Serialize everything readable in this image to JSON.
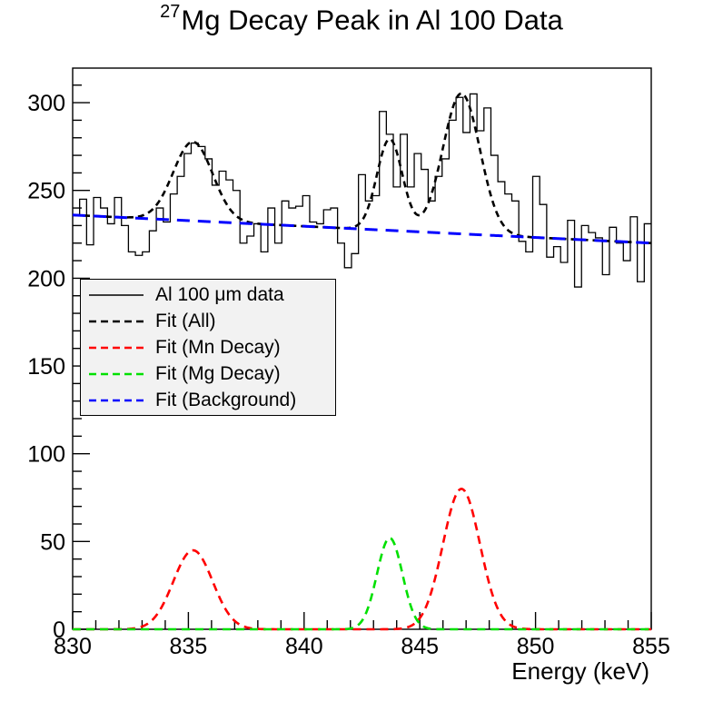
{
  "title": {
    "isotope_superscript": "27",
    "text": "Mg Decay Peak in Al 100 Data"
  },
  "axes": {
    "x_label": "Energy (keV)",
    "x_ticks_major": [
      830,
      835,
      840,
      845,
      850,
      855
    ],
    "x_minor_step": 1,
    "y_ticks_major": [
      0,
      50,
      100,
      150,
      200,
      250,
      300
    ],
    "y_minor_step": 10
  },
  "legend": {
    "entries": [
      {
        "label": "Al 100 μm data",
        "color": "#000000",
        "style": "solid"
      },
      {
        "label": "Fit (All)",
        "color": "#000000",
        "style": "dashed"
      },
      {
        "label": "Fit (Mn Decay)",
        "color": "#ff0000",
        "style": "dashed"
      },
      {
        "label": "Fit (Mg Decay)",
        "color": "#00e000",
        "style": "dashed"
      },
      {
        "label": "Fit (Background)",
        "color": "#0000ff",
        "style": "dashed"
      }
    ]
  },
  "colors": {
    "histogram": "#000000",
    "fit_all": "#000000",
    "fit_mn": "#ff0000",
    "fit_mg": "#00e000",
    "fit_background": "#0000ff",
    "legend_background": "#f2f2f2",
    "frame": "#000000"
  },
  "chart_data": {
    "type": "bar",
    "subtype": "histogram-with-fit-curves",
    "title": "27Mg Decay Peak in Al 100 Data",
    "xlabel": "Energy (keV)",
    "ylabel": "",
    "xlim": [
      830,
      855
    ],
    "ylim": [
      0,
      319.7
    ],
    "grid": false,
    "legend_position": "middle-left",
    "histogram": {
      "name": "Al 100 μm data",
      "bin_start": 830.0,
      "bin_width": 0.3012,
      "counts": [
        236,
        245,
        219,
        246,
        240,
        231,
        246,
        230,
        215,
        213,
        215,
        227,
        240,
        232,
        248,
        258,
        271,
        277,
        275,
        268,
        253,
        261,
        256,
        250,
        220,
        224,
        231,
        215,
        240,
        220,
        244,
        240,
        241,
        247,
        232,
        231,
        239,
        240,
        220,
        206,
        214,
        259,
        244,
        247,
        295,
        282,
        252,
        282,
        252,
        271,
        262,
        244,
        258,
        268,
        290,
        303,
        283,
        305,
        284,
        297,
        270,
        255,
        248,
        244,
        221,
        215,
        258,
        242,
        212,
        218,
        209,
        233,
        195,
        230,
        226,
        223,
        202,
        229,
        220,
        210,
        235,
        198,
        231
      ]
    },
    "fits": {
      "background": {
        "type": "linear",
        "value_at_830": 236,
        "value_at_855": 220
      },
      "mn_decay": {
        "type": "gaussian-sum",
        "peaks": [
          {
            "mean": 835.2,
            "sigma": 0.85,
            "amplitude": 45
          },
          {
            "mean": 846.8,
            "sigma": 0.8,
            "amplitude": 80
          }
        ]
      },
      "mg_decay": {
        "type": "gaussian",
        "peaks": [
          {
            "mean": 843.7,
            "sigma": 0.55,
            "amplitude": 52
          }
        ]
      },
      "fit_all": {
        "type": "sum",
        "components": [
          "background",
          "mn_decay",
          "mg_decay"
        ]
      }
    }
  }
}
